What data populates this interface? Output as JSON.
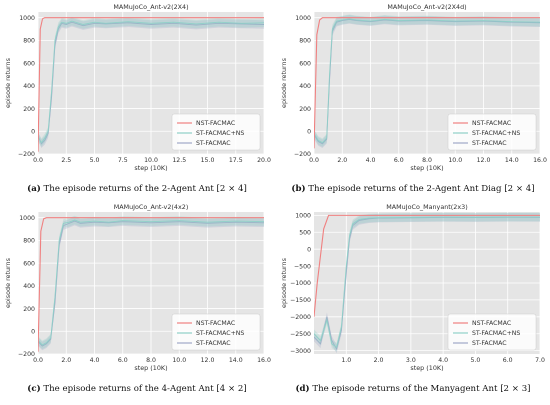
{
  "colors": {
    "plot_bg": "#e5e5e5",
    "grid": "#ffffff",
    "nst": "#f08080",
    "st_ns": "#8fd0c8",
    "st": "#a0a8c8"
  },
  "chart_data": [
    {
      "type": "line",
      "title": "MAMuJoCo_Ant-v2(2X4)",
      "xlabel": "step (10K)",
      "ylabel": "episode returns",
      "xlim": [
        0,
        20.0
      ],
      "ylim": [
        -200,
        1050
      ],
      "xticks": [
        "0.0",
        "2.5",
        "5.0",
        "7.5",
        "10.0",
        "12.5",
        "15.0",
        "17.5",
        "20.0"
      ],
      "xtick_values": [
        0,
        2.5,
        5,
        7.5,
        10,
        12.5,
        15,
        17.5,
        20
      ],
      "yticks": [
        "−200",
        "0",
        "200",
        "400",
        "600",
        "800",
        "1000"
      ],
      "ytick_values": [
        -200,
        0,
        200,
        400,
        600,
        800,
        1000
      ],
      "legend_position": "lower-right",
      "series": [
        {
          "name": "NST-FACMAC",
          "color_key": "nst",
          "x": [
            0,
            0.2,
            0.4,
            0.6,
            2.0,
            20.0
          ],
          "y": [
            -180,
            900,
            990,
            1000,
            1000,
            1000
          ]
        },
        {
          "name": "ST-FACMAC+NS",
          "color_key": "st_ns",
          "x": [
            0,
            0.3,
            0.6,
            0.9,
            1.2,
            1.5,
            1.8,
            2.1,
            2.5,
            3.0,
            4.0,
            5.0,
            6.0,
            8.0,
            10.0,
            12.0,
            14.0,
            16.0,
            18.0,
            20.0
          ],
          "y": [
            -50,
            -100,
            -60,
            0,
            350,
            800,
            920,
            960,
            950,
            970,
            940,
            960,
            950,
            965,
            950,
            960,
            945,
            960,
            950,
            955
          ]
        },
        {
          "name": "ST-FACMAC",
          "color_key": "st",
          "x": [
            0,
            0.3,
            0.6,
            0.9,
            1.2,
            1.5,
            1.8,
            2.1,
            2.5,
            3.0,
            4.0,
            5.0,
            6.0,
            8.0,
            10.0,
            12.0,
            14.0,
            16.0,
            18.0,
            20.0
          ],
          "y": [
            -40,
            -110,
            -80,
            -20,
            300,
            760,
            900,
            950,
            940,
            960,
            930,
            950,
            945,
            955,
            940,
            950,
            935,
            950,
            945,
            940
          ]
        }
      ]
    },
    {
      "type": "line",
      "title": "MAMuJoCo_Ant-v2(2X4d)",
      "xlabel": "step (10K)",
      "ylabel": "episode returns",
      "xlim": [
        0,
        16.0
      ],
      "ylim": [
        -200,
        1050
      ],
      "xticks": [
        "0.0",
        "2.0",
        "4.0",
        "6.0",
        "8.0",
        "10.0",
        "12.0",
        "14.0",
        "16.0"
      ],
      "xtick_values": [
        0,
        2,
        4,
        6,
        8,
        10,
        12,
        14,
        16
      ],
      "yticks": [
        "−200",
        "0",
        "200",
        "400",
        "600",
        "800",
        "1000"
      ],
      "ytick_values": [
        -200,
        0,
        200,
        400,
        600,
        800,
        1000
      ],
      "legend_position": "lower-right",
      "series": [
        {
          "name": "NST-FACMAC",
          "color_key": "nst",
          "x": [
            0,
            0.2,
            0.4,
            0.6,
            2.0,
            16.0
          ],
          "y": [
            -150,
            850,
            980,
            1000,
            1000,
            1000
          ]
        },
        {
          "name": "ST-FACMAC+NS",
          "color_key": "st_ns",
          "x": [
            0,
            0.3,
            0.6,
            0.9,
            1.1,
            1.3,
            1.6,
            2.0,
            2.5,
            3.0,
            4.0,
            5.0,
            6.0,
            8.0,
            10.0,
            12.0,
            14.0,
            16.0
          ],
          "y": [
            -20,
            -80,
            -100,
            -60,
            500,
            900,
            970,
            980,
            990,
            980,
            970,
            985,
            975,
            980,
            970,
            975,
            965,
            960
          ]
        },
        {
          "name": "ST-FACMAC",
          "color_key": "st",
          "x": [
            0,
            0.3,
            0.6,
            0.9,
            1.1,
            1.3,
            1.6,
            2.0,
            2.5,
            3.0,
            4.0,
            5.0,
            6.0,
            8.0,
            10.0,
            12.0,
            14.0,
            16.0
          ],
          "y": [
            -30,
            -90,
            -110,
            -70,
            450,
            880,
            960,
            975,
            985,
            975,
            965,
            980,
            970,
            975,
            965,
            970,
            960,
            955
          ]
        }
      ]
    },
    {
      "type": "line",
      "title": "MAMuJoCo_Ant-v2(4x2)",
      "xlabel": "step (10K)",
      "ylabel": "episode returns",
      "xlim": [
        0,
        16.0
      ],
      "ylim": [
        -200,
        1050
      ],
      "xticks": [
        "0.0",
        "2.0",
        "4.0",
        "6.0",
        "8.0",
        "10.0",
        "12.0",
        "14.0",
        "16.0"
      ],
      "xtick_values": [
        0,
        2,
        4,
        6,
        8,
        10,
        12,
        14,
        16
      ],
      "yticks": [
        "−200",
        "0",
        "200",
        "400",
        "600",
        "800",
        "1000"
      ],
      "ytick_values": [
        -200,
        0,
        200,
        400,
        600,
        800,
        1000
      ],
      "legend_position": "lower-right",
      "series": [
        {
          "name": "NST-FACMAC",
          "color_key": "nst",
          "x": [
            0,
            0.2,
            0.4,
            0.6,
            2.0,
            16.0
          ],
          "y": [
            -180,
            880,
            990,
            1000,
            1000,
            1000
          ]
        },
        {
          "name": "ST-FACMAC+NS",
          "color_key": "st_ns",
          "x": [
            0,
            0.3,
            0.6,
            0.9,
            1.2,
            1.5,
            1.8,
            2.2,
            2.6,
            3.0,
            4.0,
            5.0,
            6.0,
            8.0,
            10.0,
            12.0,
            14.0,
            16.0
          ],
          "y": [
            -80,
            -120,
            -100,
            -60,
            300,
            800,
            950,
            960,
            980,
            960,
            970,
            960,
            975,
            965,
            975,
            960,
            970,
            965
          ]
        },
        {
          "name": "ST-FACMAC",
          "color_key": "st",
          "x": [
            0,
            0.3,
            0.6,
            0.9,
            1.2,
            1.5,
            1.8,
            2.2,
            2.6,
            3.0,
            4.0,
            5.0,
            6.0,
            8.0,
            10.0,
            12.0,
            14.0,
            16.0
          ],
          "y": [
            -90,
            -130,
            -110,
            -70,
            250,
            760,
            930,
            950,
            970,
            950,
            960,
            955,
            965,
            955,
            965,
            950,
            960,
            955
          ]
        }
      ]
    },
    {
      "type": "line",
      "title": "MAMuJoCo_Manyant(2x3)",
      "xlabel": "step (10K)",
      "ylabel": "episode returns",
      "xlim": [
        0,
        7.0
      ],
      "ylim": [
        -3100,
        1100
      ],
      "xticks": [
        "1.0",
        "2.0",
        "3.0",
        "4.0",
        "5.0",
        "6.0",
        "7.0"
      ],
      "xtick_values": [
        1,
        2,
        3,
        4,
        5,
        6,
        7
      ],
      "yticks": [
        "−3000",
        "−2500",
        "−2000",
        "−1500",
        "−1000",
        "−500",
        "0",
        "500",
        "1000"
      ],
      "ytick_values": [
        -3000,
        -2500,
        -2000,
        -1500,
        -1000,
        -500,
        0,
        500,
        1000
      ],
      "legend_position": "lower-right",
      "series": [
        {
          "name": "NST-FACMAC",
          "color_key": "nst",
          "x": [
            0,
            0.1,
            0.2,
            0.3,
            0.45,
            0.6,
            1.0,
            2.0,
            4.0,
            7.0
          ],
          "y": [
            -2000,
            -1000,
            -200,
            600,
            1000,
            1000,
            1000,
            1000,
            1000,
            1000
          ]
        },
        {
          "name": "ST-FACMAC+NS",
          "color_key": "st_ns",
          "x": [
            0,
            0.2,
            0.4,
            0.55,
            0.7,
            0.85,
            1.0,
            1.1,
            1.2,
            1.4,
            1.7,
            2.0,
            3.0,
            4.0,
            5.0,
            6.0,
            7.0
          ],
          "y": [
            -2500,
            -2700,
            -2100,
            -2800,
            -2900,
            -2300,
            -500,
            400,
            750,
            880,
            920,
            930,
            940,
            950,
            945,
            950,
            950
          ]
        },
        {
          "name": "ST-FACMAC",
          "color_key": "st",
          "x": [
            0,
            0.2,
            0.4,
            0.55,
            0.7,
            0.85,
            1.0,
            1.1,
            1.2,
            1.4,
            1.7,
            2.0,
            3.0,
            4.0,
            5.0,
            6.0,
            7.0
          ],
          "y": [
            -2600,
            -2800,
            -2000,
            -2700,
            -2950,
            -2400,
            -700,
            300,
            700,
            850,
            900,
            920,
            930,
            940,
            935,
            945,
            940
          ]
        }
      ]
    }
  ],
  "captions": [
    {
      "letter": "(a)",
      "text": " The episode returns of the 2-Agent Ant [2 × 4]"
    },
    {
      "letter": "(b)",
      "text": " The episode returns of the 2-Agent Ant Diag [2 × 4]"
    },
    {
      "letter": "(c)",
      "text": " The episode returns of the 4-Agent Ant [4 × 2]"
    },
    {
      "letter": "(d)",
      "text": " The episode returns of the Manyagent Ant [2 × 3]"
    }
  ]
}
